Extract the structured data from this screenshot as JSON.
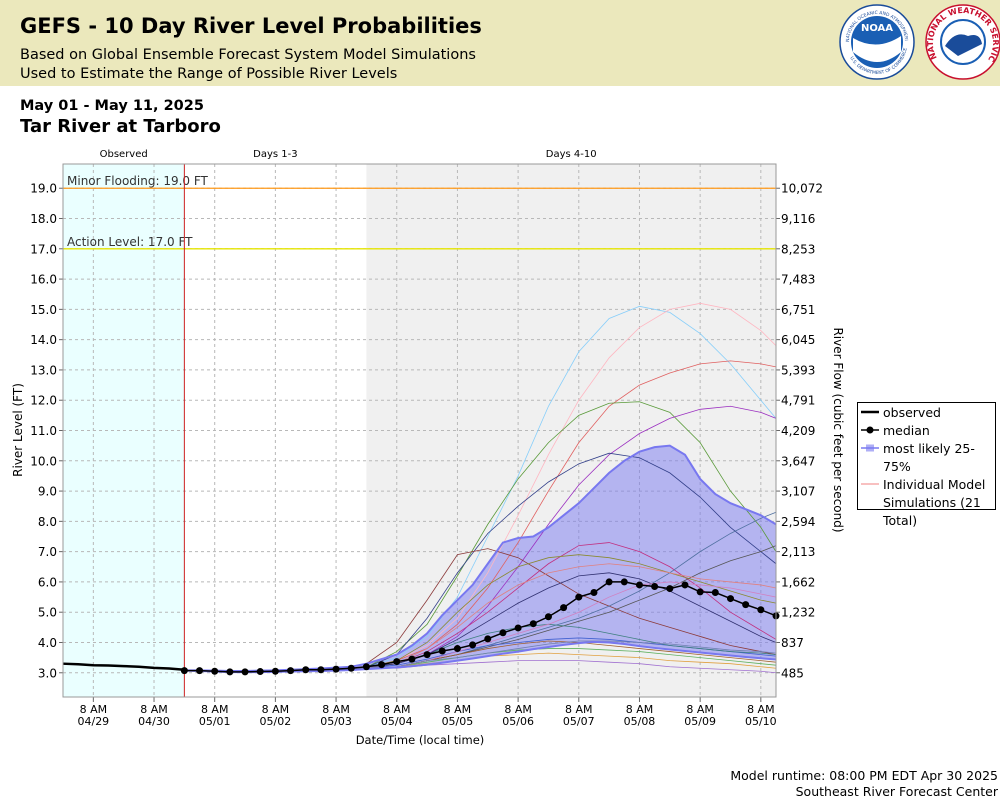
{
  "header": {
    "title": "GEFS - 10 Day River Level Probabilities",
    "subtitle1": "Based on Global Ensemble Forecast System Model Simulations",
    "subtitle2": "Used to Estimate the Range of Possible River Levels"
  },
  "logos": {
    "noaa_name": "NOAA",
    "noaa_ring_top": "NATIONAL OCEANIC AND ATMOSPHERIC ADMINISTRATION",
    "noaa_ring_bottom": "U.S. DEPARTMENT OF COMMERCE",
    "nws_ring": "NATIONAL WEATHER SERVICE"
  },
  "footer": {
    "runtime": "Model runtime: 08:00 PM EDT Apr 30 2025",
    "center": "Southeast River Forecast Center"
  },
  "chart_data": {
    "type": "line",
    "date_range": "May 01 - May 11, 2025",
    "title": "Tar River at Tarboro",
    "xlabel": "Date/Time (local time)",
    "ylabel": "River Level (FT)",
    "y2label": "River Flow (cubic feet per second)",
    "grid": true,
    "xlim": [
      "2025-04-28T20:00",
      "2025-05-10T14:00"
    ],
    "ylim": [
      2.2,
      19.8
    ],
    "xticks": [
      {
        "value": "2025-04-29T08:00",
        "label": [
          "8 AM",
          "04/29"
        ]
      },
      {
        "value": "2025-04-30T08:00",
        "label": [
          "8 AM",
          "04/30"
        ]
      },
      {
        "value": "2025-05-01T08:00",
        "label": [
          "8 AM",
          "05/01"
        ]
      },
      {
        "value": "2025-05-02T08:00",
        "label": [
          "8 AM",
          "05/02"
        ]
      },
      {
        "value": "2025-05-03T08:00",
        "label": [
          "8 AM",
          "05/03"
        ]
      },
      {
        "value": "2025-05-04T08:00",
        "label": [
          "8 AM",
          "05/04"
        ]
      },
      {
        "value": "2025-05-05T08:00",
        "label": [
          "8 AM",
          "05/05"
        ]
      },
      {
        "value": "2025-05-06T08:00",
        "label": [
          "8 AM",
          "05/06"
        ]
      },
      {
        "value": "2025-05-07T08:00",
        "label": [
          "8 AM",
          "05/07"
        ]
      },
      {
        "value": "2025-05-08T08:00",
        "label": [
          "8 AM",
          "05/08"
        ]
      },
      {
        "value": "2025-05-09T08:00",
        "label": [
          "8 AM",
          "05/09"
        ]
      },
      {
        "value": "2025-05-10T08:00",
        "label": [
          "8 AM",
          "05/10"
        ]
      }
    ],
    "yticks": [
      {
        "value": 3,
        "label": "3.0"
      },
      {
        "value": 4,
        "label": "4.0"
      },
      {
        "value": 5,
        "label": "5.0"
      },
      {
        "value": 6,
        "label": "6.0"
      },
      {
        "value": 7,
        "label": "7.0"
      },
      {
        "value": 8,
        "label": "8.0"
      },
      {
        "value": 9,
        "label": "9.0"
      },
      {
        "value": 10,
        "label": "10.0"
      },
      {
        "value": 11,
        "label": "11.0"
      },
      {
        "value": 12,
        "label": "12.0"
      },
      {
        "value": 13,
        "label": "13.0"
      },
      {
        "value": 14,
        "label": "14.0"
      },
      {
        "value": 15,
        "label": "15.0"
      },
      {
        "value": 16,
        "label": "16.0"
      },
      {
        "value": 17,
        "label": "17.0"
      },
      {
        "value": 18,
        "label": "18.0"
      },
      {
        "value": 19,
        "label": "19.0"
      }
    ],
    "y2ticks": [
      485,
      837,
      {
        "value": 1232,
        "label": "1,232"
      },
      {
        "value": 1662,
        "label": "1,662"
      },
      {
        "value": 2113,
        "label": "2,113"
      },
      {
        "value": 2594,
        "label": "2,594"
      },
      {
        "value": 3107,
        "label": "3,107"
      },
      {
        "value": 3647,
        "label": "3,647"
      },
      {
        "value": 4209,
        "label": "4,209"
      },
      {
        "value": 4791,
        "label": "4,791"
      },
      {
        "value": 5393,
        "label": "5,393"
      },
      {
        "value": 6045,
        "label": "6,045"
      },
      {
        "value": 6751,
        "label": "6,751"
      },
      {
        "value": 7483,
        "label": "7,483"
      },
      {
        "value": 8253,
        "label": "8,253"
      },
      {
        "value": 9116,
        "label": "9,116"
      },
      {
        "value": 10072,
        "label": "10,072"
      }
    ],
    "periods": [
      {
        "label": "Observed",
        "start": "2025-04-28T20:00",
        "end": "2025-04-30T20:00",
        "color": "#eaffff"
      },
      {
        "label": "Days 1-3",
        "start": "2025-04-30T20:00",
        "end": "2025-05-03T20:00",
        "color": "#ffffff"
      },
      {
        "label": "Days 4-10",
        "start": "2025-05-03T20:00",
        "end": "2025-05-10T14:00",
        "color": "#f0f0f0"
      }
    ],
    "thresholds": [
      {
        "label": "Minor Flooding: 19.0 FT",
        "value": 19,
        "color": "#ff9a1a"
      },
      {
        "label": "Action Level: 17.0 FT",
        "value": 17,
        "color": "#e6e600"
      }
    ],
    "series": [
      {
        "name": "observed",
        "color": "#000000",
        "x": [
          "2025-04-28T20:00",
          "2025-04-29T02:00",
          "2025-04-29T08:00",
          "2025-04-29T14:00",
          "2025-04-29T20:00",
          "2025-04-30T02:00",
          "2025-04-30T08:00",
          "2025-04-30T14:00",
          "2025-04-30T20:00"
        ],
        "values": [
          3.3,
          3.28,
          3.25,
          3.24,
          3.22,
          3.2,
          3.16,
          3.14,
          3.1
        ]
      },
      {
        "name": "median",
        "color": "#000000",
        "x": [
          "2025-04-30T20:00",
          "2025-05-01T02:00",
          "2025-05-01T08:00",
          "2025-05-01T14:00",
          "2025-05-01T20:00",
          "2025-05-02T02:00",
          "2025-05-02T08:00",
          "2025-05-02T14:00",
          "2025-05-02T20:00",
          "2025-05-03T02:00",
          "2025-05-03T08:00",
          "2025-05-03T14:00",
          "2025-05-03T20:00",
          "2025-05-04T02:00",
          "2025-05-04T08:00",
          "2025-05-04T14:00",
          "2025-05-04T20:00",
          "2025-05-05T02:00",
          "2025-05-05T08:00",
          "2025-05-05T14:00",
          "2025-05-05T20:00",
          "2025-05-06T02:00",
          "2025-05-06T08:00",
          "2025-05-06T14:00",
          "2025-05-06T20:00",
          "2025-05-07T02:00",
          "2025-05-07T08:00",
          "2025-05-07T14:00",
          "2025-05-07T20:00",
          "2025-05-08T02:00",
          "2025-05-08T08:00",
          "2025-05-08T14:00",
          "2025-05-08T20:00",
          "2025-05-09T02:00",
          "2025-05-09T08:00",
          "2025-05-09T14:00",
          "2025-05-09T20:00",
          "2025-05-10T02:00",
          "2025-05-10T08:00",
          "2025-05-10T14:00"
        ],
        "values": [
          3.07,
          3.07,
          3.05,
          3.03,
          3.03,
          3.04,
          3.05,
          3.07,
          3.1,
          3.1,
          3.12,
          3.15,
          3.2,
          3.27,
          3.37,
          3.45,
          3.6,
          3.72,
          3.8,
          3.92,
          4.12,
          4.32,
          4.48,
          4.62,
          4.85,
          5.15,
          5.5,
          5.65,
          6.0,
          6.0,
          5.9,
          5.85,
          5.78,
          5.9,
          5.67,
          5.65,
          5.45,
          5.25,
          5.08,
          4.88
        ]
      }
    ],
    "band": {
      "name": "most likely 25-75%",
      "color": "#7878f0",
      "upper": [
        3.08,
        3.08,
        3.07,
        3.06,
        3.06,
        3.07,
        3.08,
        3.1,
        3.12,
        3.14,
        3.17,
        3.2,
        3.3,
        3.45,
        3.6,
        3.9,
        4.3,
        4.9,
        5.4,
        5.9,
        6.6,
        7.3,
        7.45,
        7.5,
        7.8,
        8.2,
        8.6,
        9.1,
        9.6,
        10.0,
        10.3,
        10.45,
        10.5,
        10.2,
        9.4,
        8.9,
        8.6,
        8.4,
        8.2,
        7.9
      ],
      "lower": [
        3.07,
        3.06,
        3.04,
        3.02,
        3.02,
        3.02,
        3.03,
        3.04,
        3.05,
        3.06,
        3.07,
        3.09,
        3.12,
        3.15,
        3.18,
        3.22,
        3.27,
        3.33,
        3.4,
        3.47,
        3.55,
        3.63,
        3.7,
        3.78,
        3.85,
        3.92,
        3.98,
        4.02,
        4.0,
        3.95,
        3.88,
        3.82,
        3.77,
        3.72,
        3.67,
        3.62,
        3.57,
        3.52,
        3.48,
        3.44
      ]
    },
    "simulations": {
      "name": "Individual Model Simulations (21 Total)",
      "legend_color": "#f08080",
      "x": [
        "2025-04-30T20:00",
        "2025-05-01T08:00",
        "2025-05-01T20:00",
        "2025-05-02T08:00",
        "2025-05-02T20:00",
        "2025-05-03T08:00",
        "2025-05-03T20:00",
        "2025-05-04T08:00",
        "2025-05-04T20:00",
        "2025-05-05T08:00",
        "2025-05-05T20:00",
        "2025-05-06T08:00",
        "2025-05-06T20:00",
        "2025-05-07T08:00",
        "2025-05-07T20:00",
        "2025-05-08T08:00",
        "2025-05-08T20:00",
        "2025-05-09T08:00",
        "2025-05-09T20:00",
        "2025-05-10T08:00",
        "2025-05-10T14:00"
      ],
      "lines": [
        {
          "color": "#87cefa",
          "values": [
            3.07,
            3.05,
            3.03,
            3.04,
            3.07,
            3.1,
            3.18,
            3.5,
            4.2,
            5.5,
            7.5,
            9.5,
            11.8,
            13.6,
            14.7,
            15.1,
            14.9,
            14.2,
            13.2,
            12.0,
            11.4
          ]
        },
        {
          "color": "#ffb6c1",
          "values": [
            3.07,
            3.05,
            3.03,
            3.04,
            3.07,
            3.1,
            3.18,
            3.4,
            3.9,
            4.8,
            6.3,
            8.2,
            10.2,
            12.0,
            13.4,
            14.4,
            15.0,
            15.2,
            15.0,
            14.3,
            13.8
          ]
        },
        {
          "color": "#e06060",
          "values": [
            3.07,
            3.05,
            3.03,
            3.04,
            3.07,
            3.1,
            3.18,
            3.4,
            3.8,
            4.6,
            5.8,
            7.3,
            9.0,
            10.6,
            11.8,
            12.5,
            12.9,
            13.2,
            13.3,
            13.2,
            13.1
          ]
        },
        {
          "color": "#5a9a3a",
          "values": [
            3.07,
            3.05,
            3.03,
            3.04,
            3.07,
            3.1,
            3.18,
            3.7,
            4.6,
            6.2,
            7.9,
            9.4,
            10.6,
            11.5,
            11.9,
            11.95,
            11.6,
            10.6,
            9.0,
            7.8,
            7.0
          ]
        },
        {
          "color": "#9b30c0",
          "values": [
            3.07,
            3.05,
            3.03,
            3.04,
            3.07,
            3.1,
            3.18,
            3.3,
            3.6,
            4.2,
            5.2,
            6.5,
            7.9,
            9.2,
            10.2,
            10.9,
            11.4,
            11.7,
            11.8,
            11.6,
            11.4
          ]
        },
        {
          "color": "#33408a",
          "values": [
            3.07,
            3.05,
            3.03,
            3.04,
            3.07,
            3.1,
            3.18,
            3.6,
            4.8,
            6.3,
            7.6,
            8.5,
            9.3,
            9.9,
            10.25,
            10.1,
            9.6,
            8.8,
            7.8,
            7.0,
            6.6
          ]
        },
        {
          "color": "#8b3a3a",
          "values": [
            3.07,
            3.05,
            3.03,
            3.04,
            3.07,
            3.12,
            3.3,
            4.0,
            5.4,
            6.9,
            7.1,
            6.8,
            6.2,
            5.6,
            5.2,
            4.8,
            4.5,
            4.2,
            3.9,
            3.7,
            3.6
          ]
        },
        {
          "color": "#c03080",
          "values": [
            3.07,
            3.05,
            3.03,
            3.04,
            3.07,
            3.1,
            3.18,
            3.3,
            3.7,
            4.3,
            5.0,
            5.8,
            6.6,
            7.2,
            7.3,
            7.0,
            6.5,
            5.8,
            5.0,
            4.4,
            4.1
          ]
        },
        {
          "color": "#5070a0",
          "values": [
            3.07,
            3.05,
            3.03,
            3.04,
            3.07,
            3.1,
            3.18,
            3.2,
            3.4,
            3.6,
            3.9,
            4.2,
            4.5,
            4.8,
            5.2,
            5.7,
            6.3,
            7.0,
            7.6,
            8.1,
            8.3
          ]
        },
        {
          "color": "#555555",
          "values": [
            3.07,
            3.05,
            3.03,
            3.04,
            3.07,
            3.1,
            3.18,
            3.2,
            3.4,
            3.6,
            3.85,
            4.1,
            4.4,
            4.7,
            5.0,
            5.4,
            5.8,
            6.3,
            6.7,
            7.0,
            7.2
          ]
        },
        {
          "color": "#8a8a30",
          "values": [
            3.07,
            3.05,
            3.03,
            3.04,
            3.07,
            3.1,
            3.18,
            3.4,
            4.0,
            5.0,
            5.9,
            6.5,
            6.8,
            6.9,
            6.8,
            6.6,
            6.3,
            6.0,
            5.7,
            5.4,
            5.3
          ]
        },
        {
          "color": "#e08080",
          "values": [
            3.07,
            3.05,
            3.03,
            3.04,
            3.07,
            3.1,
            3.18,
            3.3,
            3.8,
            4.5,
            5.3,
            5.9,
            6.3,
            6.5,
            6.6,
            6.5,
            6.3,
            6.1,
            6.0,
            5.9,
            5.8
          ]
        },
        {
          "color": "#4060d0",
          "values": [
            3.07,
            3.05,
            3.03,
            3.04,
            3.07,
            3.1,
            3.18,
            3.25,
            3.45,
            3.7,
            3.9,
            4.0,
            4.1,
            4.15,
            4.1,
            4.0,
            3.9,
            3.8,
            3.7,
            3.6,
            3.55
          ]
        },
        {
          "color": "#60b060",
          "values": [
            3.07,
            3.05,
            3.03,
            3.04,
            3.07,
            3.1,
            3.18,
            3.2,
            3.35,
            3.5,
            3.65,
            3.75,
            3.8,
            3.8,
            3.75,
            3.7,
            3.6,
            3.5,
            3.4,
            3.3,
            3.25
          ]
        },
        {
          "color": "#e0a040",
          "values": [
            3.07,
            3.05,
            3.03,
            3.04,
            3.07,
            3.1,
            3.18,
            3.2,
            3.3,
            3.4,
            3.55,
            3.6,
            3.65,
            3.6,
            3.55,
            3.5,
            3.4,
            3.35,
            3.3,
            3.2,
            3.15
          ]
        },
        {
          "color": "#a070d0",
          "values": [
            3.07,
            3.05,
            3.03,
            3.04,
            3.07,
            3.1,
            3.18,
            3.15,
            3.25,
            3.3,
            3.35,
            3.4,
            3.4,
            3.4,
            3.35,
            3.3,
            3.2,
            3.15,
            3.1,
            3.05,
            3.0
          ]
        },
        {
          "color": "#408080",
          "values": [
            3.07,
            3.05,
            3.03,
            3.04,
            3.07,
            3.1,
            3.18,
            3.3,
            3.6,
            4.0,
            4.3,
            4.5,
            4.6,
            4.5,
            4.3,
            4.1,
            3.9,
            3.8,
            3.7,
            3.65,
            3.6
          ]
        },
        {
          "color": "#a06030",
          "values": [
            3.07,
            3.05,
            3.03,
            3.04,
            3.07,
            3.1,
            3.18,
            3.2,
            3.4,
            3.6,
            3.8,
            3.95,
            4.05,
            4.0,
            3.9,
            3.8,
            3.7,
            3.6,
            3.5,
            3.4,
            3.35
          ]
        },
        {
          "color": "#303070",
          "values": [
            3.07,
            3.05,
            3.03,
            3.04,
            3.07,
            3.1,
            3.18,
            3.3,
            3.6,
            4.1,
            4.7,
            5.3,
            5.8,
            6.2,
            6.3,
            6.1,
            5.7,
            5.2,
            4.7,
            4.2,
            4.0
          ]
        },
        {
          "color": "#d080c0",
          "values": [
            3.07,
            3.05,
            3.03,
            3.04,
            3.07,
            3.1,
            3.18,
            3.2,
            3.4,
            3.7,
            4.0,
            4.3,
            4.6,
            5.0,
            5.5,
            5.9,
            6.0,
            5.9,
            5.8,
            5.6,
            5.5
          ]
        },
        {
          "color": "#7080b0",
          "values": [
            3.07,
            3.05,
            3.03,
            3.04,
            3.07,
            3.1,
            3.18,
            3.2,
            3.4,
            3.5,
            3.65,
            3.8,
            3.95,
            4.05,
            4.05,
            4.0,
            3.95,
            3.85,
            3.75,
            3.7,
            3.65
          ]
        }
      ]
    }
  }
}
